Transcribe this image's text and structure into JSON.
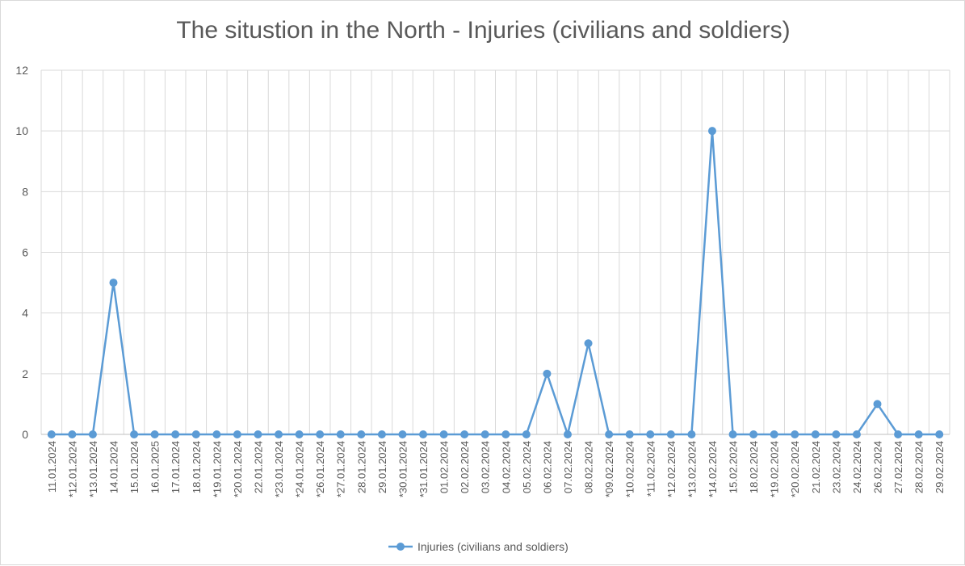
{
  "chart_data": {
    "type": "line",
    "title": "The situstion in the North - Injuries (civilians and soldiers)",
    "xlabel": "",
    "ylabel": "",
    "ylim": [
      0,
      12
    ],
    "yticks": [
      0,
      2,
      4,
      6,
      8,
      10,
      12
    ],
    "grid": true,
    "legend_position": "bottom",
    "categories": [
      "11.01.2024",
      "*12.01.2024",
      "*13.01.2024",
      "14.01.2024",
      "15.01.2024",
      "16.01.2025",
      "17.01.2024",
      "18.01.2024",
      "*19.01.2024",
      "*20.01.2024",
      "22.01.2024",
      "*23.01.2024",
      "*24.01.2024",
      "*26.01.2024",
      "*27.01.2024",
      "28.01.2024",
      "29.01.2024",
      "*30.01.2024",
      "*31.01.2024",
      "01.02.2024",
      "02.02.2024",
      "03.02.2024",
      "04.02.2024",
      "05.02.2024",
      "06.02.2024",
      "07.02.2024",
      "08.02.2024",
      "*09.02.2024",
      "*10.02.2024",
      "*11.02.2024",
      "*12.02.2024",
      "*13.02.2024",
      "*14.02.2024",
      "15.02.2024",
      "18.02.2024",
      "*19.02.2024",
      "*20.02.2024",
      "21.02.2024",
      "23.02.2024",
      "24.02.2024",
      "26.02.2024",
      "27.02.2024",
      "28.02.2024",
      "29.02.2024"
    ],
    "series": [
      {
        "name": "Injuries (civilians and soldiers)",
        "color": "#5b9bd5",
        "values": [
          0,
          0,
          0,
          5,
          0,
          0,
          0,
          0,
          0,
          0,
          0,
          0,
          0,
          0,
          0,
          0,
          0,
          0,
          0,
          0,
          0,
          0,
          0,
          0,
          2,
          0,
          3,
          0,
          0,
          0,
          0,
          0,
          10,
          0,
          0,
          0,
          0,
          0,
          0,
          0,
          1,
          0,
          0,
          0
        ]
      }
    ]
  }
}
